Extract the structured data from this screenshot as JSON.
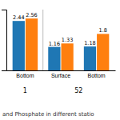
{
  "chart_data": {
    "type": "bar",
    "subtitle": "and Phosphate in different statio",
    "categories": [
      "Bottom",
      "Surface",
      "Bottom"
    ],
    "stations": [
      "1",
      "52",
      "52"
    ],
    "series": [
      {
        "values": [
          2.44,
          1.16,
          1.18
        ]
      },
      {
        "values": [
          2.56,
          1.33,
          1.8
        ]
      }
    ],
    "ylim": [
      0,
      3.0
    ],
    "yticks": [],
    "grid": false,
    "data_labels": true,
    "tick_labels": "x"
  }
}
